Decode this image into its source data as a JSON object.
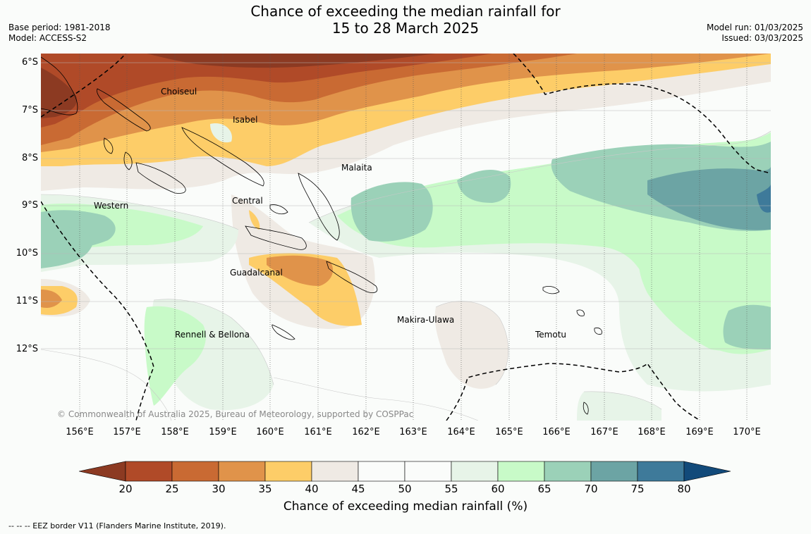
{
  "title": {
    "line1": "Chance of exceeding the median rainfall for",
    "line2": "15 to 28 March 2025"
  },
  "meta": {
    "base_period": "Base period: 1981-2018",
    "model": "Model: ACCESS-S2",
    "model_run": "Model run: 01/03/2025",
    "issued": "Issued: 03/03/2025"
  },
  "axes": {
    "lat_ticks": [
      "6°S",
      "7°S",
      "8°S",
      "9°S",
      "10°S",
      "11°S",
      "12°S"
    ],
    "lon_ticks": [
      "156°E",
      "157°E",
      "158°E",
      "159°E",
      "160°E",
      "161°E",
      "162°E",
      "163°E",
      "164°E",
      "165°E",
      "166°E",
      "167°E",
      "168°E",
      "169°E",
      "170°E"
    ]
  },
  "regions": [
    {
      "name": "Choiseul"
    },
    {
      "name": "Isabel"
    },
    {
      "name": "Malaita"
    },
    {
      "name": "Western"
    },
    {
      "name": "Central"
    },
    {
      "name": "Guadalcanal"
    },
    {
      "name": "Makira-Ulawa"
    },
    {
      "name": "Rennell & Bellona"
    },
    {
      "name": "Temotu"
    }
  ],
  "copyright": "© Commonwealth of Australia 2025, Bureau of Meteorology, supported by COSPPac",
  "colorbar": {
    "label": "Chance of exceeding median rainfall (%)",
    "ticks": [
      "20",
      "25",
      "30",
      "35",
      "40",
      "45",
      "50",
      "55",
      "60",
      "65",
      "70",
      "75",
      "80"
    ],
    "colors": [
      "#8c3a22",
      "#b04a28",
      "#c96a33",
      "#e0934a",
      "#fdcd68",
      "#efeae4",
      "#fafcfa",
      "#fafcfa",
      "#e7f4e8",
      "#c8fac8",
      "#9bd1b8",
      "#6ca4a4",
      "#3e7a9a",
      "#124a7a"
    ]
  },
  "footnote": "--  --  -- EEZ border V11 (Flanders Marine Institute, 2019)."
}
